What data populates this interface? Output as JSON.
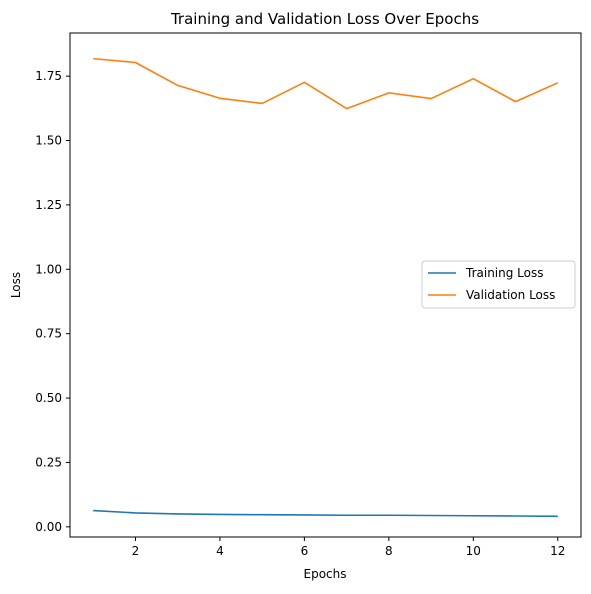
{
  "chart_data": {
    "type": "line",
    "title": "Training and Validation Loss Over Epochs",
    "xlabel": "Epochs",
    "ylabel": "Loss",
    "xlim": [
      0.45,
      12.55
    ],
    "ylim": [
      -0.0395,
      1.9175
    ],
    "xticks": [
      2,
      4,
      6,
      8,
      10,
      12
    ],
    "xtick_labels": [
      "2",
      "4",
      "6",
      "8",
      "10",
      "12"
    ],
    "yticks": [
      0.0,
      0.25,
      0.5,
      0.75,
      1.0,
      1.25,
      1.5,
      1.75
    ],
    "ytick_labels": [
      "0.00",
      "0.25",
      "0.50",
      "0.75",
      "1.00",
      "1.25",
      "1.50",
      "1.75"
    ],
    "grid": false,
    "legend_position": "center-right",
    "x": [
      1,
      2,
      3,
      4,
      5,
      6,
      7,
      8,
      9,
      10,
      11,
      12
    ],
    "series": [
      {
        "name": "Training Loss",
        "color": "#1f77b4",
        "values": [
          0.063,
          0.054,
          0.05,
          0.048,
          0.047,
          0.046,
          0.045,
          0.045,
          0.044,
          0.043,
          0.042,
          0.041
        ]
      },
      {
        "name": "Validation Loss",
        "color": "#ff7f0e",
        "values": [
          1.818,
          1.803,
          1.714,
          1.664,
          1.644,
          1.726,
          1.624,
          1.685,
          1.663,
          1.74,
          1.651,
          1.724
        ]
      }
    ]
  }
}
